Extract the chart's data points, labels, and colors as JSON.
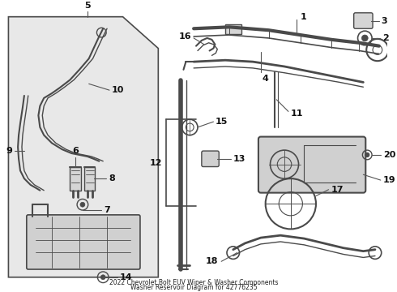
{
  "title_line1": "2022 Chevrolet Bolt EUV Wiper & Washer Components",
  "title_line2": "Washer Reservoir Diagram for 42776235",
  "bg": "#ffffff",
  "panel_bg": "#e8e8e8",
  "lc": "#4a4a4a",
  "lc_thin": "#666666",
  "label_fs": 8,
  "label_color": "#111111"
}
